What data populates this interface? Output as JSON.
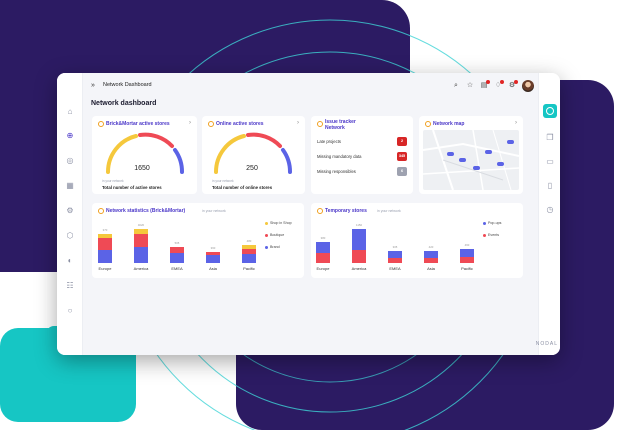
{
  "app": {
    "title": "Network Dashboard",
    "page_title": "Network dashboard",
    "brand": "NODAL"
  },
  "icons": {
    "left_rail": [
      "home-icon",
      "globe-icon",
      "location-icon",
      "grid-icon",
      "settings-icon",
      "shield-icon",
      "palette-icon",
      "users-icon",
      "user-icon"
    ],
    "top_bar": [
      "search-icon",
      "star-icon",
      "calendar-icon",
      "bell-icon",
      "gear-icon"
    ],
    "right_rail": [
      "copy-icon",
      "chat-icon",
      "document-icon",
      "clock-icon"
    ]
  },
  "cards": {
    "brick_mortar": {
      "title": "Brick&Mortar active stores",
      "value": "1650",
      "caption": "in your network",
      "total_label": "Total number of active stores"
    },
    "online": {
      "title": "Online active stores",
      "value": "250",
      "caption": "in your network",
      "total_label": "Total number of online stores"
    },
    "issue_tracker": {
      "title_line1": "Issue tracker",
      "title_line2": "Network",
      "rows": [
        {
          "label": "Late projects",
          "count": "2",
          "color": "#d72626"
        },
        {
          "label": "Missing mandatory data",
          "count": "345",
          "color": "#d72626"
        },
        {
          "label": "Missing responsibles",
          "count": "6",
          "color": "#9ea2b0"
        }
      ]
    },
    "network_map": {
      "title": "Network map"
    },
    "network_stats": {
      "title": "Network statistics (Brick&Mortar)",
      "subtitle": "in your network"
    },
    "temporary": {
      "title": "Temporary stores",
      "subtitle": "in your network"
    }
  },
  "colors": {
    "blue": "#5b63e6",
    "red": "#ef4a55",
    "yellow": "#f5c83c",
    "accent": "#4a36c8",
    "teal": "#16c6c4",
    "purple_bg": "#2c1b63"
  },
  "chart_data": [
    {
      "type": "bar",
      "title": "Network statistics (Brick&Mortar)",
      "categories": [
        "Europe",
        "America",
        "EMEA",
        "Asia",
        "Pacific"
      ],
      "value_labels": [
        "370",
        "4620",
        "505",
        "360",
        "480"
      ],
      "series": [
        {
          "name": "Brand",
          "color": "#5b63e6",
          "values": [
            10,
            13,
            8,
            6,
            7
          ]
        },
        {
          "name": "Boutique",
          "color": "#ef4a55",
          "values": [
            10,
            10,
            5,
            3,
            4
          ]
        },
        {
          "name": "Shop in Shop",
          "color": "#f5c83c",
          "values": [
            3,
            4,
            0,
            0,
            3
          ]
        }
      ]
    },
    {
      "type": "bar",
      "title": "Temporary stores",
      "categories": [
        "Europe",
        "America",
        "EMEA",
        "Asia",
        "Pacific"
      ],
      "value_labels": [
        "380",
        "1150",
        "305",
        "420",
        "460"
      ],
      "series": [
        {
          "name": "Events",
          "color": "#ef4a55",
          "values": [
            9,
            12,
            5,
            5,
            6
          ]
        },
        {
          "name": "Pop-ups",
          "color": "#5b63e6",
          "values": [
            11,
            20,
            6,
            6,
            7
          ]
        }
      ]
    }
  ]
}
